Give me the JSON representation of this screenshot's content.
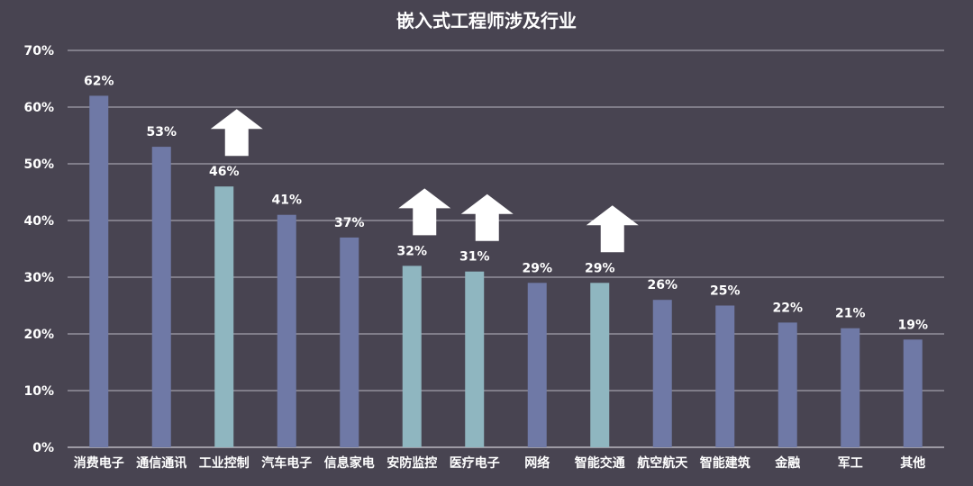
{
  "chart_data": {
    "type": "bar",
    "title": "嵌入式工程师涉及行业",
    "xlabel": "",
    "ylabel": "",
    "categories": [
      "消费电子",
      "通信通讯",
      "工业控制",
      "汽车电子",
      "信息家电",
      "安防监控",
      "医疗电子",
      "网络",
      "智能交通",
      "航空航天",
      "智能建筑",
      "金融",
      "军工",
      "其他"
    ],
    "values": [
      62,
      53,
      46,
      41,
      37,
      32,
      31,
      29,
      29,
      26,
      25,
      22,
      21,
      19
    ],
    "data_labels": [
      "62%",
      "53%",
      "46%",
      "41%",
      "37%",
      "32%",
      "31%",
      "29%",
      "29%",
      "26%",
      "25%",
      "22%",
      "21%",
      "19%"
    ],
    "highlighted": [
      false,
      false,
      true,
      false,
      false,
      true,
      true,
      false,
      true,
      false,
      false,
      false,
      false,
      false
    ],
    "up_arrows": [
      2,
      5,
      6,
      8
    ],
    "ylim": [
      0,
      70
    ],
    "yticks": [
      0,
      10,
      20,
      30,
      40,
      50,
      60,
      70
    ],
    "ytick_labels": [
      "0%",
      "10%",
      "20%",
      "30%",
      "40%",
      "50%",
      "60%",
      "70%"
    ],
    "grid": true,
    "legend": "none",
    "colors": {
      "background": "#484451",
      "bar": "#6f79a6",
      "bar_highlight": "#8fb6c0",
      "arrow": "#ffffff",
      "text": "#ffffff"
    }
  }
}
